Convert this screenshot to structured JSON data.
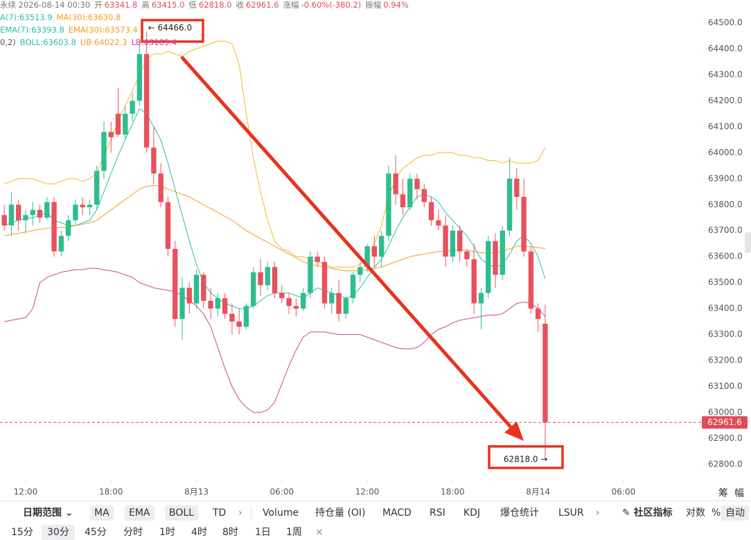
{
  "chart_data": {
    "type": "candlestick",
    "header": [
      {
        "label": "永续 2026-08-14 00:30"
      },
      {
        "label": "开",
        "value": "63341.8"
      },
      {
        "label": "高",
        "value": "63415.0"
      },
      {
        "label": "低",
        "value": "62818.0"
      },
      {
        "label": "收",
        "value": "62961.6"
      },
      {
        "label": "涨幅",
        "value": "-0.60%(-380.2)"
      },
      {
        "label": "振幅",
        "value": "0.94%"
      }
    ],
    "indicator_legend": [
      [
        {
          "text": "A(7):63513.9",
          "color": "#2bbfa4"
        },
        {
          "text": "MA(30):63630.8",
          "color": "#f0a020"
        }
      ],
      [
        {
          "text": "EMA(7):63393.8",
          "color": "#2bbfa4"
        },
        {
          "text": "EMA(30):63573.4",
          "color": "#f0a020"
        }
      ],
      [
        {
          "text": "0,2)",
          "color": "#555555"
        },
        {
          "text": "BOLL:63603.8",
          "color": "#2bbfa4"
        },
        {
          "text": "UB:64022.3",
          "color": "#f0a020"
        },
        {
          "text": "LB:63185.4",
          "color": "#d0439c"
        }
      ]
    ],
    "up_color": "#2ebd8f",
    "down_color": "#e8515d",
    "ohlc": [
      [
        63760,
        63800,
        63700,
        63720
      ],
      [
        63720,
        63850,
        63680,
        63800
      ],
      [
        63800,
        63820,
        63700,
        63740
      ],
      [
        63740,
        63780,
        63690,
        63760
      ],
      [
        63760,
        63810,
        63720,
        63780
      ],
      [
        63780,
        63800,
        63730,
        63750
      ],
      [
        63750,
        63830,
        63740,
        63810
      ],
      [
        63810,
        63830,
        63600,
        63620
      ],
      [
        63620,
        63700,
        63600,
        63680
      ],
      [
        63680,
        63760,
        63660,
        63740
      ],
      [
        63740,
        63820,
        63720,
        63800
      ],
      [
        63800,
        63830,
        63760,
        63790
      ],
      [
        63790,
        63820,
        63760,
        63800
      ],
      [
        63800,
        63950,
        63780,
        63930
      ],
      [
        63930,
        64120,
        63900,
        64080
      ],
      [
        64080,
        64120,
        64000,
        64060
      ],
      [
        64150,
        64250,
        64060,
        64070
      ],
      [
        64070,
        64180,
        64050,
        64150
      ],
      [
        64150,
        64230,
        64120,
        64200
      ],
      [
        64200,
        64430,
        64180,
        64380
      ],
      [
        64380,
        64466,
        64000,
        64020
      ],
      [
        64020,
        64100,
        63880,
        63920
      ],
      [
        63920,
        63960,
        63790,
        63810
      ],
      [
        63810,
        63830,
        63600,
        63630
      ],
      [
        63630,
        63660,
        63330,
        63360
      ],
      [
        63360,
        63520,
        63280,
        63480
      ],
      [
        63480,
        63500,
        63380,
        63420
      ],
      [
        63420,
        63550,
        63400,
        63530
      ],
      [
        63530,
        63540,
        63400,
        63430
      ],
      [
        63430,
        63480,
        63360,
        63400
      ],
      [
        63400,
        63460,
        63370,
        63440
      ],
      [
        63440,
        63460,
        63360,
        63380
      ],
      [
        63380,
        63420,
        63300,
        63350
      ],
      [
        63350,
        63400,
        63300,
        63330
      ],
      [
        63330,
        63420,
        63320,
        63410
      ],
      [
        63410,
        63560,
        63400,
        63540
      ],
      [
        63540,
        63590,
        63450,
        63490
      ],
      [
        63490,
        63580,
        63470,
        63560
      ],
      [
        63560,
        63580,
        63440,
        63460
      ],
      [
        63460,
        63490,
        63420,
        63440
      ],
      [
        63440,
        63460,
        63380,
        63410
      ],
      [
        63410,
        63440,
        63370,
        63400
      ],
      [
        63400,
        63480,
        63390,
        63460
      ],
      [
        63460,
        63620,
        63440,
        63600
      ],
      [
        63600,
        63620,
        63560,
        63580
      ],
      [
        63580,
        63600,
        63400,
        63420
      ],
      [
        63420,
        63480,
        63380,
        63460
      ],
      [
        63460,
        63510,
        63350,
        63380
      ],
      [
        63380,
        63450,
        63360,
        63440
      ],
      [
        63440,
        63540,
        63420,
        63530
      ],
      [
        63530,
        63580,
        63500,
        63560
      ],
      [
        63560,
        63650,
        63540,
        63640
      ],
      [
        63640,
        63680,
        63560,
        63600
      ],
      [
        63600,
        63700,
        63560,
        63680
      ],
      [
        63680,
        63950,
        63660,
        63920
      ],
      [
        63920,
        63990,
        63800,
        63840
      ],
      [
        63840,
        63900,
        63760,
        63790
      ],
      [
        63790,
        63920,
        63780,
        63900
      ],
      [
        63900,
        63920,
        63820,
        63860
      ],
      [
        63860,
        63880,
        63790,
        63810
      ],
      [
        63810,
        63830,
        63720,
        63740
      ],
      [
        63740,
        63780,
        63700,
        63720
      ],
      [
        63720,
        63760,
        63560,
        63600
      ],
      [
        63600,
        63720,
        63580,
        63700
      ],
      [
        63700,
        63720,
        63580,
        63620
      ],
      [
        63620,
        63630,
        63560,
        63590
      ],
      [
        63590,
        63650,
        63380,
        63420
      ],
      [
        63420,
        63480,
        63320,
        63460
      ],
      [
        63460,
        63680,
        63440,
        63660
      ],
      [
        63660,
        63690,
        63480,
        63530
      ],
      [
        63530,
        63720,
        63510,
        63700
      ],
      [
        63700,
        63980,
        63680,
        63900
      ],
      [
        63900,
        63940,
        63780,
        63830
      ],
      [
        63830,
        63900,
        63600,
        63620
      ],
      [
        63620,
        63640,
        63380,
        63400
      ],
      [
        63400,
        63420,
        63310,
        63360
      ],
      [
        63341.8,
        63415,
        62818,
        62961.6
      ]
    ],
    "series": [
      {
        "color": "#f5b52c",
        "values": [
          63880,
          63890,
          63900,
          63900,
          63900,
          63890,
          63880,
          63880,
          63890,
          63900,
          63900,
          63890,
          63900,
          63920,
          63990,
          64050,
          64120,
          64180,
          64240,
          64300,
          64360,
          64380,
          64380,
          64390,
          64380,
          64370,
          64390,
          64400,
          64410,
          64420,
          64430,
          64430,
          64420,
          64340,
          64150,
          63980,
          63850,
          63740,
          63660,
          63630,
          63620,
          63600,
          63600,
          63590,
          63580,
          63570,
          63560,
          63560,
          63560,
          63560,
          63570,
          63600,
          63650,
          63720,
          63830,
          63900,
          63940,
          63960,
          63980,
          63990,
          63990,
          64000,
          64000,
          64000,
          63990,
          63990,
          63980,
          63980,
          63970,
          63970,
          63960,
          63970,
          63960,
          63960,
          63960,
          63970,
          64020
        ]
      },
      {
        "color": "#d0439c",
        "values": [
          63350,
          63355,
          63360,
          63365,
          63400,
          63500,
          63520,
          63530,
          63540,
          63545,
          63550,
          63550,
          63555,
          63555,
          63550,
          63545,
          63540,
          63530,
          63520,
          63500,
          63490,
          63480,
          63475,
          63470,
          63465,
          63450,
          63430,
          63410,
          63380,
          63330,
          63250,
          63170,
          63100,
          63050,
          63020,
          63000,
          63000,
          63010,
          63040,
          63110,
          63180,
          63240,
          63290,
          63310,
          63310,
          63310,
          63305,
          63300,
          63300,
          63300,
          63300,
          63290,
          63280,
          63270,
          63260,
          63250,
          63245,
          63245,
          63250,
          63270,
          63300,
          63320,
          63330,
          63345,
          63355,
          63360,
          63365,
          63370,
          63375,
          63375,
          63380,
          63400,
          63420,
          63425,
          63420,
          63400,
          63370
        ]
      },
      {
        "color": "#2bbfa4",
        "values": [
          63720,
          63730,
          63740,
          63745,
          63750,
          63760,
          63770,
          63740,
          63730,
          63720,
          63720,
          63730,
          63740,
          63780,
          63850,
          63920,
          63990,
          64050,
          64110,
          64170,
          64150,
          64100,
          64050,
          63960,
          63860,
          63760,
          63660,
          63570,
          63500,
          63460,
          63440,
          63420,
          63410,
          63400,
          63400,
          63410,
          63430,
          63450,
          63460,
          63460,
          63460,
          63450,
          63440,
          63460,
          63480,
          63470,
          63460,
          63450,
          63440,
          63450,
          63480,
          63520,
          63560,
          63590,
          63640,
          63700,
          63750,
          63790,
          63830,
          63840,
          63830,
          63810,
          63770,
          63740,
          63710,
          63680,
          63640,
          63590,
          63570,
          63560,
          63570,
          63610,
          63660,
          63680,
          63650,
          63600,
          63514
        ]
      },
      {
        "color": "#f0a020",
        "values": [
          63680,
          63685,
          63690,
          63695,
          63700,
          63705,
          63710,
          63710,
          63712,
          63715,
          63720,
          63725,
          63730,
          63740,
          63760,
          63780,
          63800,
          63820,
          63840,
          63860,
          63870,
          63875,
          63870,
          63860,
          63850,
          63840,
          63830,
          63815,
          63800,
          63785,
          63770,
          63755,
          63740,
          63720,
          63700,
          63685,
          63670,
          63655,
          63640,
          63625,
          63610,
          63595,
          63580,
          63570,
          63565,
          63560,
          63555,
          63550,
          63545,
          63545,
          63545,
          63550,
          63555,
          63560,
          63570,
          63580,
          63590,
          63600,
          63605,
          63610,
          63615,
          63620,
          63620,
          63625,
          63625,
          63625,
          63620,
          63615,
          63615,
          63615,
          63620,
          63630,
          63640,
          63640,
          63638,
          63635,
          63631
        ]
      }
    ],
    "xlim": [
      -0.6,
      98.2
    ],
    "xticks": [
      {
        "value": 3,
        "label": "12:00"
      },
      {
        "value": 15,
        "label": "18:00"
      },
      {
        "value": 27,
        "label": "8月13"
      },
      {
        "value": 39,
        "label": "06:00"
      },
      {
        "value": 51,
        "label": "12:00"
      },
      {
        "value": 63,
        "label": "18:00"
      },
      {
        "value": 75,
        "label": "8月14"
      },
      {
        "value": 87,
        "label": "06:00"
      }
    ],
    "ylim": [
      62746.6,
      64588
    ],
    "yticks": [
      {
        "value": 62800,
        "label": "62800.0"
      },
      {
        "value": 62900,
        "label": "62900.0"
      },
      {
        "value": 63000,
        "label": "63000.0"
      },
      {
        "value": 63100,
        "label": "63100.0"
      },
      {
        "value": 63200,
        "label": "63200.0"
      },
      {
        "value": 63300,
        "label": "63300.0"
      },
      {
        "value": 63400,
        "label": "63400.0"
      },
      {
        "value": 63500,
        "label": "63500.0"
      },
      {
        "value": 63600,
        "label": "63600.0"
      },
      {
        "value": 63700,
        "label": "63700.0"
      },
      {
        "value": 63800,
        "label": "63800.0"
      },
      {
        "value": 63900,
        "label": "63900.0"
      },
      {
        "value": 64000,
        "label": "64000.0"
      },
      {
        "value": 64100,
        "label": "64100.0"
      },
      {
        "value": 64200,
        "label": "64200.0"
      },
      {
        "value": 64300,
        "label": "64300.0"
      },
      {
        "value": 64400,
        "label": "64400.0"
      },
      {
        "value": 64500,
        "label": "64500.0"
      }
    ],
    "high_label": "← 64466.0",
    "low_label": "62818.0 →",
    "axis_tools": [
      "筹",
      "幅"
    ],
    "toolbar": {
      "date_range": "日期范围",
      "indicators": [
        "MA",
        "EMA",
        "BOLL",
        "TD"
      ],
      "subcharts": [
        "Volume",
        "持仓量 (OI)",
        "MACD",
        "RSI",
        "KDJ",
        "爆仓统计",
        "LSUR"
      ],
      "community": "社区指标",
      "options": [
        "对数",
        "%",
        "自动"
      ],
      "intervals": [
        "15分",
        "30分",
        "45分",
        "分时",
        "1时",
        "4时",
        "8时",
        "1日",
        "1周"
      ]
    }
  }
}
